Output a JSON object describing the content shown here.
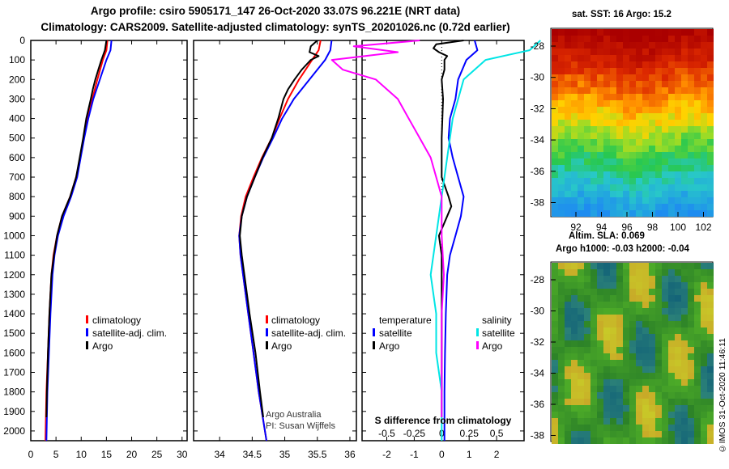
{
  "header": {
    "line1": "Argo profile: csiro 5905171_147 26-Oct-2020 33.07S 96.221E (NRT data)",
    "line2": "Climatology: CARS2009. Satellite-adjusted climatology: synTS_20201026.nc (0.72d earlier)"
  },
  "colors": {
    "climatology": "#ff0000",
    "satellite": "#0000ff",
    "argo": "#000000",
    "sat_salinity": "#00e5e5",
    "argo_salinity": "#ff00ff"
  },
  "chart_data": [
    {
      "type": "line",
      "name": "temperature-profile",
      "ylabel": "depth",
      "ylim": [
        0,
        2050
      ],
      "yticks": [
        0,
        100,
        200,
        300,
        400,
        500,
        600,
        700,
        800,
        900,
        1000,
        1100,
        1200,
        1300,
        1400,
        1500,
        1600,
        1700,
        1800,
        1900,
        2000
      ],
      "xlim": [
        0,
        31
      ],
      "xticks": [
        0,
        5,
        10,
        15,
        20,
        25,
        30
      ],
      "legend": [
        "climatology",
        "satellite-adj. clim.",
        "Argo"
      ],
      "series": [
        {
          "name": "climatology",
          "depth": [
            0,
            50,
            100,
            200,
            300,
            400,
            500,
            600,
            700,
            800,
            900,
            1000,
            1100,
            1200,
            1400,
            1600,
            1800,
            2050
          ],
          "values": [
            15.2,
            15.0,
            14.3,
            13.2,
            12.2,
            11.2,
            10.5,
            9.8,
            9.0,
            7.8,
            6.2,
            5.2,
            4.5,
            4.1,
            3.7,
            3.4,
            3.1,
            2.9
          ]
        },
        {
          "name": "satellite-adj. clim.",
          "depth": [
            0,
            50,
            100,
            200,
            300,
            400,
            500,
            600,
            700,
            800,
            900,
            1000,
            1100,
            1200,
            1400,
            1600,
            1800,
            2050
          ],
          "values": [
            16.0,
            15.8,
            15.0,
            13.7,
            12.4,
            11.4,
            10.6,
            9.9,
            9.2,
            8.0,
            6.5,
            5.4,
            4.7,
            4.3,
            3.9,
            3.6,
            3.3,
            3.1
          ]
        },
        {
          "name": "Argo",
          "depth": [
            0,
            50,
            100,
            150,
            200,
            250,
            300,
            400,
            500,
            600,
            700,
            800,
            900,
            1000,
            1100,
            1200,
            1400,
            1600,
            1800,
            1930
          ],
          "values": [
            15.0,
            14.7,
            14.0,
            13.4,
            12.8,
            12.3,
            11.9,
            11.0,
            10.4,
            9.7,
            9.0,
            7.8,
            6.2,
            5.2,
            4.6,
            4.1,
            3.7,
            3.4,
            3.2,
            3.1
          ]
        }
      ]
    },
    {
      "type": "line",
      "name": "salinity-profile",
      "ylim": [
        0,
        2050
      ],
      "xlim": [
        33.6,
        36.1
      ],
      "xticks": [
        34,
        34.5,
        35,
        35.5,
        36
      ],
      "legend": [
        "climatology",
        "satellite-adj. clim.",
        "Argo"
      ],
      "annotation": [
        "Argo Australia",
        "PI: Susan Wijffels"
      ],
      "series": [
        {
          "name": "climatology",
          "depth": [
            0,
            50,
            100,
            200,
            300,
            400,
            500,
            600,
            700,
            800,
            900,
            1000,
            1100,
            1200,
            1400,
            1600,
            1800,
            2050
          ],
          "values": [
            35.55,
            35.52,
            35.42,
            35.22,
            35.05,
            34.92,
            34.8,
            34.65,
            34.52,
            34.4,
            34.33,
            34.3,
            34.32,
            34.36,
            34.44,
            34.52,
            34.6,
            34.72
          ]
        },
        {
          "name": "satellite-adj. clim.",
          "depth": [
            0,
            50,
            100,
            200,
            300,
            400,
            500,
            600,
            700,
            800,
            900,
            1000,
            1100,
            1200,
            1400,
            1600,
            1800,
            2050
          ],
          "values": [
            35.72,
            35.7,
            35.62,
            35.38,
            35.14,
            34.96,
            34.82,
            34.67,
            34.54,
            34.42,
            34.34,
            34.3,
            34.32,
            34.36,
            34.44,
            34.52,
            34.6,
            34.72
          ]
        },
        {
          "name": "Argo",
          "depth": [
            0,
            30,
            60,
            80,
            100,
            150,
            200,
            250,
            300,
            400,
            500,
            600,
            700,
            800,
            900,
            1000,
            1100,
            1200,
            1400,
            1600,
            1800,
            1930
          ],
          "values": [
            35.5,
            35.4,
            35.38,
            35.52,
            35.4,
            35.26,
            35.15,
            35.05,
            34.98,
            34.9,
            34.8,
            34.66,
            34.54,
            34.42,
            34.34,
            34.31,
            34.34,
            34.38,
            34.46,
            34.55,
            34.62,
            34.67
          ]
        }
      ]
    },
    {
      "type": "line",
      "name": "difference-from-climatology",
      "title": "S difference from climatology",
      "ylim": [
        0,
        2050
      ],
      "xlim": [
        -2.9,
        3.0
      ],
      "xticks": [
        -3,
        -2,
        -1,
        0,
        1,
        2
      ],
      "top_xticks": [
        -0.5,
        -0.25,
        0,
        0.25,
        0.5
      ],
      "legend_groups": [
        {
          "heading": "temperature",
          "items": [
            "satellite",
            "Argo"
          ]
        },
        {
          "heading": "salinity",
          "items": [
            "satellite",
            "Argo"
          ]
        }
      ],
      "series": [
        {
          "name": "temperature satellite",
          "depth": [
            0,
            50,
            100,
            200,
            300,
            400,
            500,
            600,
            700,
            800,
            850,
            900,
            1000,
            1100,
            1200,
            1400,
            1600,
            1800,
            2050
          ],
          "values": [
            1.2,
            1.3,
            0.9,
            0.6,
            0.5,
            0.3,
            0.25,
            0.4,
            0.6,
            0.8,
            0.75,
            0.7,
            0.5,
            0.3,
            0.2,
            0.15,
            0.12,
            0.1,
            0.1
          ]
        },
        {
          "name": "temperature Argo",
          "depth": [
            0,
            20,
            40,
            60,
            80,
            100,
            150,
            200,
            300,
            500,
            700,
            800,
            850,
            900,
            950,
            1000,
            1050,
            1100,
            1400,
            1700,
            1930
          ],
          "values": [
            0.8,
            -0.2,
            -0.3,
            -0.1,
            0.2,
            0.1,
            0.1,
            0.0,
            0.05,
            0.0,
            0.0,
            0.25,
            0.35,
            0.2,
            0.05,
            -0.1,
            -0.05,
            0.0,
            0.0,
            0.0,
            0.0
          ]
        },
        {
          "name": "salinity satellite",
          "depth": [
            0,
            50,
            100,
            200,
            400,
            600,
            800,
            1000,
            1200,
            1400,
            1600,
            1800,
            2050
          ],
          "values": [
            0.9,
            0.8,
            0.4,
            0.2,
            0.1,
            0.05,
            0.0,
            -0.05,
            -0.1,
            -0.05,
            -0.05,
            0.0,
            0.0
          ]
        },
        {
          "name": "salinity Argo",
          "depth": [
            0,
            30,
            60,
            100,
            150,
            200,
            300,
            400,
            500,
            600,
            800,
            1000,
            1200,
            1400,
            1600,
            1800,
            1930
          ],
          "values": [
            -0.2,
            -0.8,
            -0.4,
            -1.0,
            -0.9,
            -0.6,
            -0.4,
            -0.3,
            -0.2,
            -0.1,
            0.0,
            0.0,
            0.02,
            0.0,
            0.0,
            0.0,
            0.0
          ]
        }
      ]
    }
  ],
  "maps": {
    "sst": {
      "title": "sat. SST: 16 Argo: 15.2",
      "lat_ticks": [
        "-28",
        "-30",
        "-32",
        "-34",
        "-36",
        "-38"
      ],
      "lon_ticks": [
        "92",
        "94",
        "96",
        "98",
        "100",
        "102"
      ]
    },
    "sla": {
      "title_line1": "Altim. SLA: 0.069",
      "title_line2": "Argo h1000: -0.03 h2000: -0.04",
      "lat_ticks": [
        "-28",
        "-30",
        "-32",
        "-34",
        "-36",
        "-38"
      ]
    }
  },
  "footer": {
    "stamp": "©IMOS 31-Oct-2020 11:46:11"
  }
}
